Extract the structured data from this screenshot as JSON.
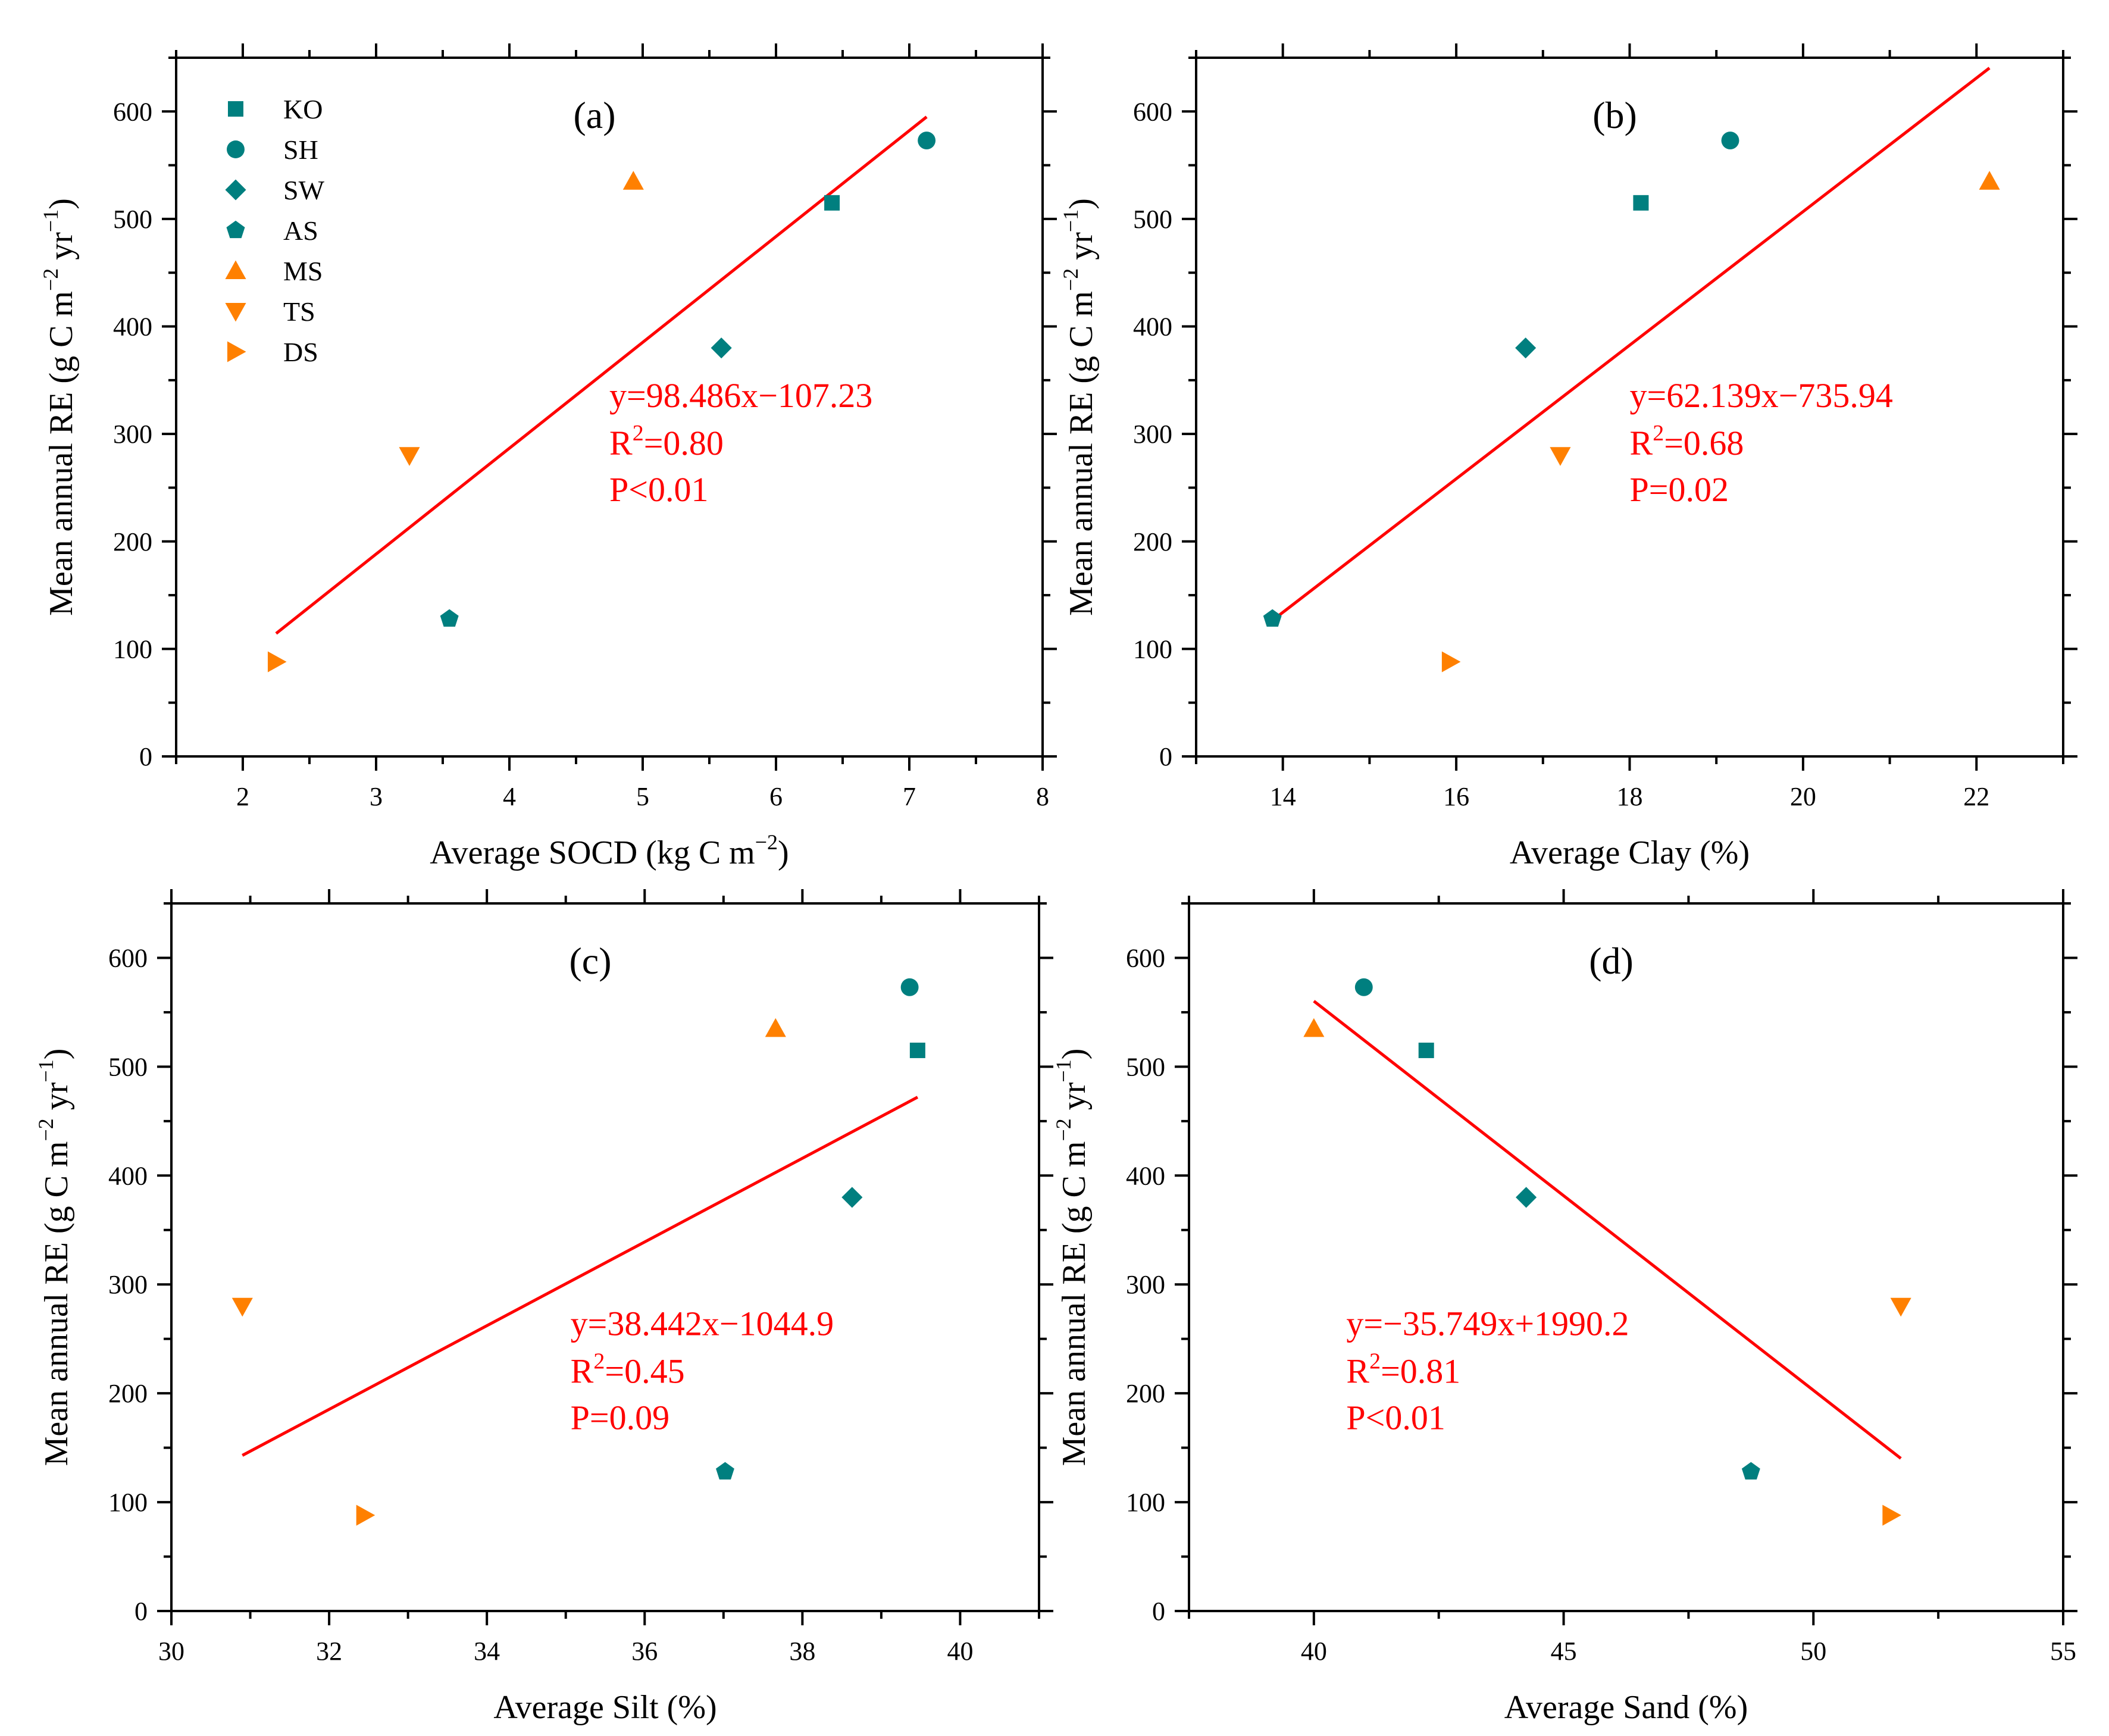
{
  "colors": {
    "teal": "#007f7f",
    "orange": "#ff8000",
    "fit": "#ff0000",
    "axis": "#000000"
  },
  "legend": [
    {
      "key": "KO",
      "label": "KO",
      "shape": "square",
      "color": "teal"
    },
    {
      "key": "SH",
      "label": "SH",
      "shape": "circle",
      "color": "teal"
    },
    {
      "key": "SW",
      "label": "SW",
      "shape": "diamond",
      "color": "teal"
    },
    {
      "key": "AS",
      "label": "AS",
      "shape": "pentagon",
      "color": "teal"
    },
    {
      "key": "MS",
      "label": "MS",
      "shape": "triangle-up",
      "color": "orange"
    },
    {
      "key": "TS",
      "label": "TS",
      "shape": "triangle-down",
      "color": "orange"
    },
    {
      "key": "DS",
      "label": "DS",
      "shape": "triangle-right",
      "color": "orange"
    }
  ],
  "chart_data": [
    {
      "type": "scatter",
      "panel_label": "(a)",
      "xlabel": {
        "pre": "Average SOCD (kg C m",
        "sup": "−2",
        "post": ")"
      },
      "ylabel": {
        "pre": "Mean annual RE (g C m",
        "sup1": "−2",
        "mid": " yr",
        "sup2": "−1",
        "post": ")"
      },
      "xlim": [
        1.5,
        8
      ],
      "xticks": [
        2,
        3,
        4,
        5,
        6,
        7,
        8
      ],
      "ylim": [
        0,
        650
      ],
      "yticks": [
        0,
        100,
        200,
        300,
        400,
        500,
        600
      ],
      "points": [
        {
          "site": "KO",
          "x": 6.42,
          "y": 515
        },
        {
          "site": "SH",
          "x": 7.13,
          "y": 573
        },
        {
          "site": "SW",
          "x": 5.59,
          "y": 380
        },
        {
          "site": "AS",
          "x": 3.55,
          "y": 128
        },
        {
          "site": "MS",
          "x": 4.93,
          "y": 535
        },
        {
          "site": "TS",
          "x": 3.25,
          "y": 280
        },
        {
          "site": "DS",
          "x": 2.25,
          "y": 88
        }
      ],
      "fit": {
        "slope": 98.486,
        "intercept": -107.23,
        "x_range": [
          2.25,
          7.13
        ]
      },
      "equation": "y=98.486x−107.23",
      "r2": "=0.80",
      "pvalue": "P<0.01",
      "legend_shown": true,
      "eq_position": "center-right"
    },
    {
      "type": "scatter",
      "panel_label": "(b)",
      "xlabel": {
        "pre": "Average Clay (%)",
        "sup": "",
        "post": ""
      },
      "ylabel": {
        "pre": "Mean annual RE (g C m",
        "sup1": "−2",
        "mid": " yr",
        "sup2": "−1",
        "post": ")"
      },
      "xlim": [
        13,
        23
      ],
      "xticks": [
        14,
        16,
        18,
        20,
        22
      ],
      "ylim": [
        0,
        650
      ],
      "yticks": [
        0,
        100,
        200,
        300,
        400,
        500,
        600
      ],
      "points": [
        {
          "site": "KO",
          "x": 18.13,
          "y": 515
        },
        {
          "site": "SH",
          "x": 19.16,
          "y": 573
        },
        {
          "site": "SW",
          "x": 16.8,
          "y": 380
        },
        {
          "site": "AS",
          "x": 13.88,
          "y": 128
        },
        {
          "site": "MS",
          "x": 22.15,
          "y": 535
        },
        {
          "site": "TS",
          "x": 17.2,
          "y": 280
        },
        {
          "site": "DS",
          "x": 15.93,
          "y": 88
        }
      ],
      "fit": {
        "slope": 62.139,
        "intercept": -735.94,
        "x_range": [
          13.88,
          22.15
        ]
      },
      "equation": "y=62.139x−735.94",
      "r2": "=0.68",
      "pvalue": "P=0.02",
      "legend_shown": false,
      "eq_position": "center-right"
    },
    {
      "type": "scatter",
      "panel_label": "(c)",
      "xlabel": {
        "pre": "Average Silt (%)",
        "sup": "",
        "post": ""
      },
      "ylabel": {
        "pre": "Mean annual RE (g C m",
        "sup1": "−2",
        "mid": " yr",
        "sup2": "−1",
        "post": ")"
      },
      "xlim": [
        30,
        41
      ],
      "xticks": [
        30,
        32,
        34,
        36,
        38,
        40
      ],
      "ylim": [
        0,
        650
      ],
      "yticks": [
        0,
        100,
        200,
        300,
        400,
        500,
        600
      ],
      "points": [
        {
          "site": "KO",
          "x": 39.46,
          "y": 515
        },
        {
          "site": "SH",
          "x": 39.36,
          "y": 573
        },
        {
          "site": "SW",
          "x": 38.63,
          "y": 380
        },
        {
          "site": "AS",
          "x": 37.02,
          "y": 128
        },
        {
          "site": "MS",
          "x": 37.66,
          "y": 535
        },
        {
          "site": "TS",
          "x": 30.9,
          "y": 280
        },
        {
          "site": "DS",
          "x": 32.45,
          "y": 88
        }
      ],
      "fit": {
        "slope": 38.442,
        "intercept": -1044.9,
        "x_range": [
          30.9,
          39.46
        ]
      },
      "equation": "y=38.442x−1044.9",
      "r2": "=0.45",
      "pvalue": "P=0.09",
      "legend_shown": false,
      "eq_position": "center"
    },
    {
      "type": "scatter",
      "panel_label": "(d)",
      "xlabel": {
        "pre": "Average Sand (%)",
        "sup": "",
        "post": ""
      },
      "ylabel": {
        "pre": "Mean annual RE (g C m",
        "sup1": "−2",
        "mid": " yr",
        "sup2": "−1",
        "post": ")"
      },
      "xlim": [
        37.5,
        55
      ],
      "xticks": [
        40,
        45,
        50,
        55
      ],
      "ylim": [
        0,
        650
      ],
      "yticks": [
        0,
        100,
        200,
        300,
        400,
        500,
        600
      ],
      "points": [
        {
          "site": "KO",
          "x": 42.25,
          "y": 515
        },
        {
          "site": "SH",
          "x": 41.0,
          "y": 573
        },
        {
          "site": "SW",
          "x": 44.25,
          "y": 380
        },
        {
          "site": "AS",
          "x": 48.75,
          "y": 128
        },
        {
          "site": "MS",
          "x": 40.0,
          "y": 535
        },
        {
          "site": "TS",
          "x": 51.75,
          "y": 280
        },
        {
          "site": "DS",
          "x": 51.55,
          "y": 88
        }
      ],
      "fit": {
        "slope": -35.749,
        "intercept": 1990.2,
        "x_range": [
          40.0,
          51.75
        ]
      },
      "equation": "y=−35.749x+1990.2",
      "r2": "=0.81",
      "pvalue": "P<0.01",
      "legend_shown": false,
      "eq_position": "center-left"
    }
  ]
}
